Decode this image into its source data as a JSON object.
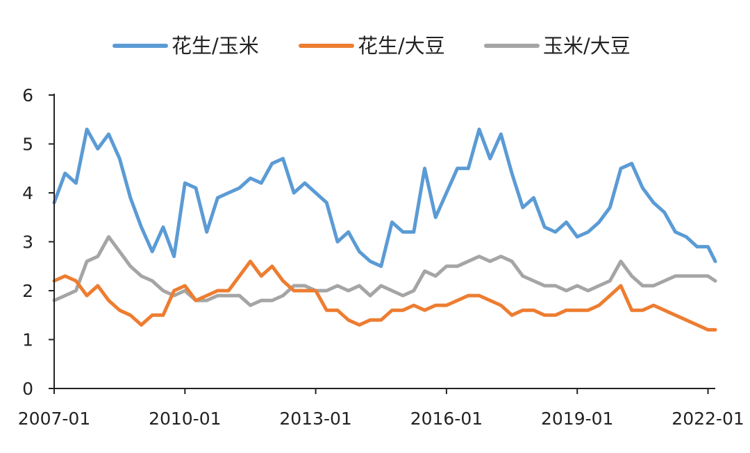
{
  "chart_data": {
    "type": "line",
    "title": "",
    "xlabel": "",
    "ylabel": "",
    "ylim": [
      0,
      6
    ],
    "yticks": [
      "0",
      "1",
      "2",
      "3",
      "4",
      "5",
      "6"
    ],
    "xticks": [
      "2007-01",
      "2010-01",
      "2013-01",
      "2016-01",
      "2019-01",
      "2022-01"
    ],
    "grid": false,
    "legend_position": "top-center",
    "x": [
      "2007-01",
      "2007-04",
      "2007-07",
      "2007-10",
      "2008-01",
      "2008-04",
      "2008-07",
      "2008-10",
      "2009-01",
      "2009-04",
      "2009-07",
      "2009-10",
      "2010-01",
      "2010-04",
      "2010-07",
      "2010-10",
      "2011-01",
      "2011-04",
      "2011-07",
      "2011-10",
      "2012-01",
      "2012-04",
      "2012-07",
      "2012-10",
      "2013-01",
      "2013-04",
      "2013-07",
      "2013-10",
      "2014-01",
      "2014-04",
      "2014-07",
      "2014-10",
      "2015-01",
      "2015-04",
      "2015-07",
      "2015-10",
      "2016-01",
      "2016-04",
      "2016-07",
      "2016-10",
      "2017-01",
      "2017-04",
      "2017-07",
      "2017-10",
      "2018-01",
      "2018-04",
      "2018-07",
      "2018-10",
      "2019-01",
      "2019-04",
      "2019-07",
      "2019-10",
      "2020-01",
      "2020-04",
      "2020-07",
      "2020-10",
      "2021-01",
      "2021-04",
      "2021-07",
      "2021-10",
      "2022-01",
      "2022-03"
    ],
    "series": [
      {
        "name": "花生/玉米",
        "color": "#5b9bd5",
        "values": [
          3.8,
          4.4,
          4.2,
          5.3,
          4.9,
          5.2,
          4.7,
          3.9,
          3.3,
          2.8,
          3.3,
          2.7,
          4.2,
          4.1,
          3.2,
          3.9,
          4.0,
          4.1,
          4.3,
          4.2,
          4.6,
          4.7,
          4.0,
          4.2,
          4.0,
          3.8,
          3.0,
          3.2,
          2.8,
          2.6,
          2.5,
          3.4,
          3.2,
          3.2,
          4.5,
          3.5,
          4.0,
          4.5,
          4.5,
          5.3,
          4.7,
          5.2,
          4.4,
          3.7,
          3.9,
          3.3,
          3.2,
          3.4,
          3.1,
          3.2,
          3.4,
          3.7,
          4.5,
          4.6,
          4.1,
          3.8,
          3.6,
          3.2,
          3.1,
          2.9,
          2.9,
          2.6
        ]
      },
      {
        "name": "花生/大豆",
        "color": "#ed7d31",
        "values": [
          2.2,
          2.3,
          2.2,
          1.9,
          2.1,
          1.8,
          1.6,
          1.5,
          1.3,
          1.5,
          1.5,
          2.0,
          2.1,
          1.8,
          1.9,
          2.0,
          2.0,
          2.3,
          2.6,
          2.3,
          2.5,
          2.2,
          2.0,
          2.0,
          2.0,
          1.6,
          1.6,
          1.4,
          1.3,
          1.4,
          1.4,
          1.6,
          1.6,
          1.7,
          1.6,
          1.7,
          1.7,
          1.8,
          1.9,
          1.9,
          1.8,
          1.7,
          1.5,
          1.6,
          1.6,
          1.5,
          1.5,
          1.6,
          1.6,
          1.6,
          1.7,
          1.9,
          2.1,
          1.6,
          1.6,
          1.7,
          1.6,
          1.5,
          1.4,
          1.3,
          1.2,
          1.2
        ]
      },
      {
        "name": "玉米/大豆",
        "color": "#a5a5a5",
        "values": [
          1.8,
          1.9,
          2.0,
          2.6,
          2.7,
          3.1,
          2.8,
          2.5,
          2.3,
          2.2,
          2.0,
          1.9,
          2.0,
          1.8,
          1.8,
          1.9,
          1.9,
          1.9,
          1.7,
          1.8,
          1.8,
          1.9,
          2.1,
          2.1,
          2.0,
          2.0,
          2.1,
          2.0,
          2.1,
          1.9,
          2.1,
          2.0,
          1.9,
          2.0,
          2.4,
          2.3,
          2.5,
          2.5,
          2.6,
          2.7,
          2.6,
          2.7,
          2.6,
          2.3,
          2.2,
          2.1,
          2.1,
          2.0,
          2.1,
          2.0,
          2.1,
          2.2,
          2.6,
          2.3,
          2.1,
          2.1,
          2.2,
          2.3,
          2.3,
          2.3,
          2.3,
          2.2
        ]
      }
    ]
  }
}
